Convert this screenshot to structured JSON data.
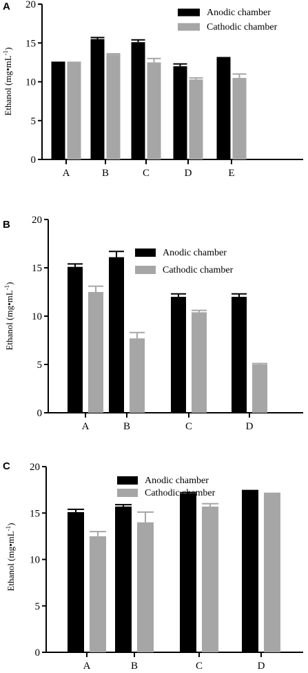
{
  "colors": {
    "anodic": "#000000",
    "cathodic": "#a6a6a6",
    "axis": "#000000"
  },
  "chart_data": [
    {
      "panel": "A",
      "type": "bar",
      "ylabel": "Ethanol (mg•mL",
      "ylabel_sup": "-1",
      "ylabel_close": ")",
      "ylim": [
        0,
        20
      ],
      "yticks": [
        "0",
        "5",
        "10",
        "15",
        "20"
      ],
      "legend": "top-right",
      "categories": [
        "A",
        "B",
        "C",
        "D",
        "E"
      ],
      "series": [
        {
          "name": "Anodic chamber",
          "values": [
            12.6,
            15.5,
            15.1,
            12.0,
            13.2
          ],
          "errors": [
            0,
            0.2,
            0.3,
            0.3,
            0
          ]
        },
        {
          "name": "Cathodic chamber",
          "values": [
            12.6,
            13.5,
            12.5,
            10.3,
            10.5
          ],
          "errors": [
            0,
            0.1,
            0.5,
            0.2,
            0.5
          ]
        }
      ]
    },
    {
      "panel": "B",
      "type": "bar",
      "ylabel": "Ethanol (mg•mL",
      "ylabel_sup": "-1",
      "ylabel_close": ")",
      "ylim": [
        0,
        20
      ],
      "yticks": [
        "0",
        "5",
        "10",
        "15",
        "20"
      ],
      "legend": "top-right",
      "categories": [
        "A",
        "B",
        "C",
        "D"
      ],
      "series": [
        {
          "name": "Anodic chamber",
          "values": [
            15.1,
            16.1,
            12.0,
            12.0
          ],
          "errors": [
            0.3,
            0.6,
            0.3,
            0.3
          ]
        },
        {
          "name": "Cathodic chamber",
          "values": [
            12.5,
            7.7,
            10.4,
            5.0
          ],
          "errors": [
            0.6,
            0.6,
            0.2,
            0.1
          ]
        }
      ]
    },
    {
      "panel": "C",
      "type": "bar",
      "ylabel": "Ethanol (mg•mL",
      "ylabel_sup": "-1",
      "ylabel_close": ")",
      "ylim": [
        0,
        20
      ],
      "yticks": [
        "0",
        "5",
        "10",
        "15",
        "20"
      ],
      "legend": "top-center",
      "categories": [
        "A",
        "B",
        "C",
        "D"
      ],
      "series": [
        {
          "name": "Anodic chamber",
          "values": [
            15.1,
            15.7,
            17.1,
            17.5
          ],
          "errors": [
            0.3,
            0.2,
            0.1,
            0
          ]
        },
        {
          "name": "Cathodic chamber",
          "values": [
            12.5,
            14.0,
            15.7,
            17.2
          ],
          "errors": [
            0.5,
            1.1,
            0.3,
            0
          ]
        }
      ]
    }
  ]
}
